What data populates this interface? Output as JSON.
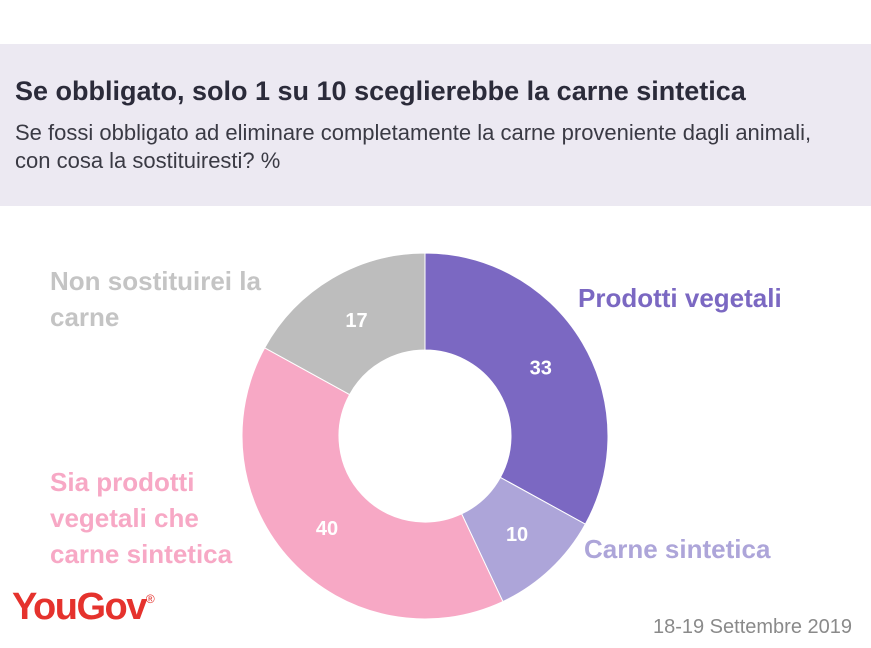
{
  "header": {
    "title": "Se obbligato, solo 1 su 10 sceglierebbe  la carne sintetica",
    "subtitle": "Se fossi obbligato ad eliminare completamente la carne proveniente dagli animali, con cosa la sostituiresti? %"
  },
  "chart_data": {
    "type": "pie",
    "variant": "donut",
    "title": "",
    "unit": "%",
    "slices": [
      {
        "label": "Prodotti vegetali",
        "value": 33,
        "color": "#7b68c2"
      },
      {
        "label": "Carne sintetica",
        "value": 10,
        "color": "#ada5d9"
      },
      {
        "label": "Sia prodotti vegetali che carne sintetica",
        "value": 40,
        "color": "#f7a8c5"
      },
      {
        "label": "Non sostituirei la carne",
        "value": 17,
        "color": "#bdbdbd"
      }
    ]
  },
  "labels": {
    "prodotti_vegetali": "Prodotti vegetali",
    "carne_sintetica": "Carne sintetica",
    "sia_line1": "Sia prodotti",
    "sia_line2": "vegetali che",
    "sia_line3": "carne sintetica",
    "non_line1": "Non sostituirei la",
    "non_line2": "carne"
  },
  "footer": {
    "logo": "YouGov",
    "logo_mark": "®",
    "date": "18-19 Settembre 2019"
  }
}
